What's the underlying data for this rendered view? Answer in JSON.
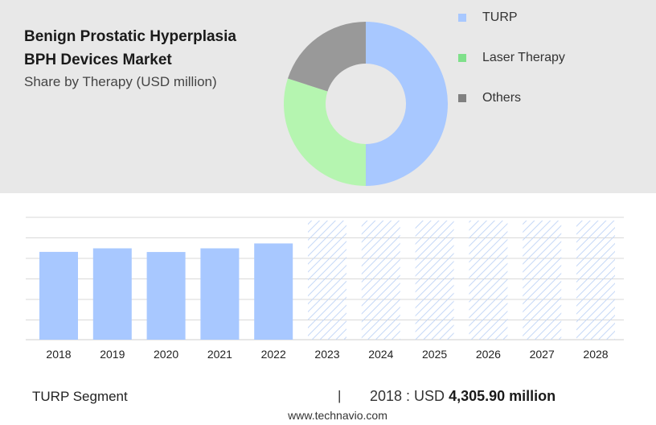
{
  "header": {
    "title_line1": "Benign Prostatic Hyperplasia",
    "title_line2": "BPH Devices Market",
    "subtitle": "Share by Therapy (USD million)"
  },
  "colors": {
    "top_panel": "#e8e8e8",
    "turp": "#a8c8ff",
    "laser": "#b5f5b0",
    "others": "#999999",
    "legend_laser": "#7fe08a",
    "legend_others": "#808080",
    "gridline": "#d9d9d9",
    "forecast_hatch": "#c5d8f7"
  },
  "chart_data": [
    {
      "type": "pie",
      "variant": "donut",
      "title": "Share by Therapy (USD million)",
      "slices": [
        {
          "name": "TURP",
          "value": 50,
          "color": "#a8c8ff"
        },
        {
          "name": "Laser Therapy",
          "value": 30,
          "color": "#b5f5b0"
        },
        {
          "name": "Others",
          "value": 20,
          "color": "#999999"
        }
      ],
      "legend": {
        "placement": "right"
      }
    },
    {
      "type": "bar",
      "title": "TURP Segment",
      "categories": [
        "2018",
        "2019",
        "2020",
        "2021",
        "2022",
        "2023",
        "2024",
        "2025",
        "2026",
        "2027",
        "2028"
      ],
      "values": [
        4305.9,
        4480,
        4300,
        4480,
        4720,
        null,
        null,
        null,
        null,
        null,
        null
      ],
      "forecast_categories": [
        "2023",
        "2024",
        "2025",
        "2026",
        "2027",
        "2028"
      ],
      "forecast_style": "hatched",
      "ylim": [
        0,
        6000
      ],
      "grid": true
    }
  ],
  "footer": {
    "segment_label": "TURP Segment",
    "divider": "|",
    "year_text": "2018 : USD",
    "value_text": "4,305.90 million",
    "website": "www.technavio.com"
  }
}
